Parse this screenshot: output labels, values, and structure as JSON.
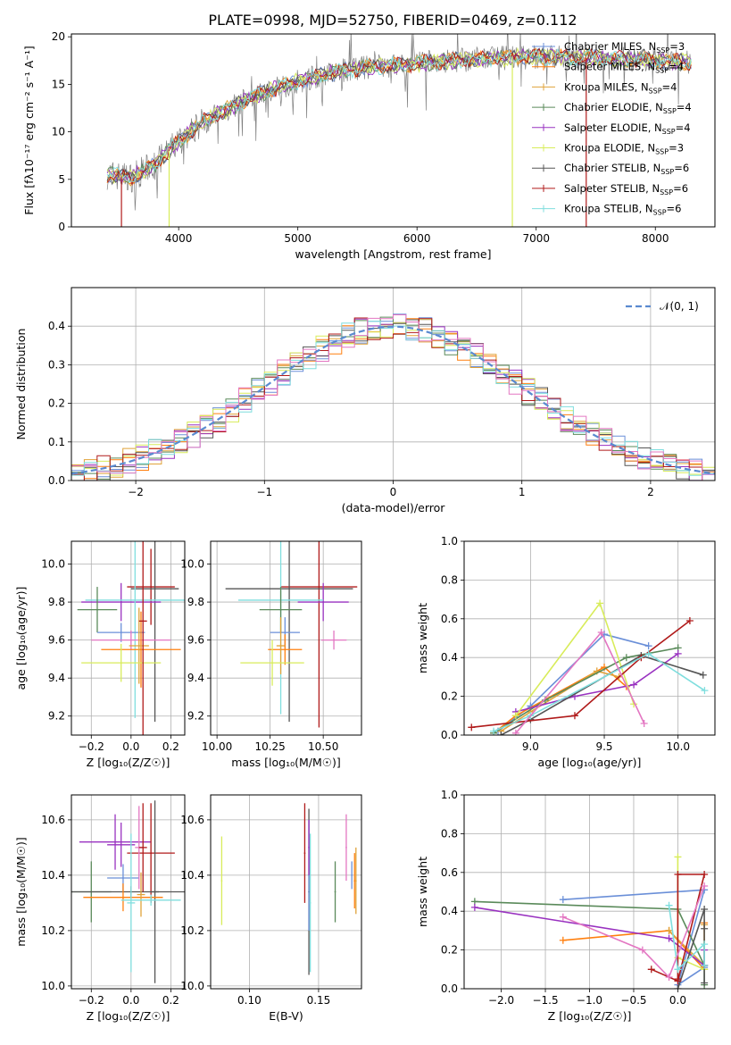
{
  "figure": {
    "title": "PLATE=0998, MJD=52750, FIBERID=0469, z=0.112"
  },
  "colors": {
    "chabrier_miles": "#6a8fd8",
    "salpeter_miles": "#ff7f0e",
    "kroupa_miles": "#e0a33a",
    "chabrier_elodie": "#5a8a5a",
    "salpeter_elodie": "#9932c0",
    "kroupa_elodie": "#d8ec5a",
    "chabrier_stelib": "#555555",
    "salpeter_stelib": "#b01a1a",
    "kroupa_stelib": "#7fdede",
    "orange": "#ff7f0e",
    "pink": "#e377c2",
    "gray_data": "#808080",
    "normal": "#5a8ad0"
  },
  "chart_data": [
    {
      "id": "spectrum",
      "type": "line",
      "title": "PLATE=0998, MJD=52750, FIBERID=0469, z=0.112",
      "xlabel": "wavelength [Angstrom, rest frame]",
      "ylabel": "Flux [fλ10⁻¹⁷ erg cm⁻² s⁻¹ A⁻¹]",
      "xlim": [
        3100,
        8500
      ],
      "ylim": [
        0,
        20.3
      ],
      "xticks": [
        4000,
        5000,
        6000,
        7000,
        8000
      ],
      "yticks": [
        0,
        5,
        10,
        15,
        20
      ],
      "legend_position": "upper-right",
      "legend": [
        {
          "label": "Chabrier MILES, N",
          "sub": "SSP",
          "val": "=3",
          "color_key": "chabrier_miles"
        },
        {
          "label": "Salpeter MILES, N",
          "sub": "SSP",
          "val": "=4",
          "color_key": "salpeter_miles"
        },
        {
          "label": "Kroupa MILES, N",
          "sub": "SSP",
          "val": "=4",
          "color_key": "kroupa_miles"
        },
        {
          "label": "Chabrier ELODIE, N",
          "sub": "SSP",
          "val": "=4",
          "color_key": "chabrier_elodie"
        },
        {
          "label": "Salpeter ELODIE, N",
          "sub": "SSP",
          "val": "=4",
          "color_key": "salpeter_elodie"
        },
        {
          "label": "Kroupa ELODIE, N",
          "sub": "SSP",
          "val": "=3",
          "color_key": "kroupa_elodie"
        },
        {
          "label": "Chabrier STELIB, N",
          "sub": "SSP",
          "val": "=6",
          "color_key": "chabrier_stelib"
        },
        {
          "label": "Salpeter STELIB, N",
          "sub": "SSP",
          "val": "=6",
          "color_key": "salpeter_stelib"
        },
        {
          "label": "Kroupa STELIB, N",
          "sub": "SSP",
          "val": "=6",
          "color_key": "kroupa_stelib"
        }
      ],
      "continuum": {
        "x": [
          3400,
          3600,
          3800,
          4000,
          4200,
          4400,
          4600,
          4800,
          5000,
          5200,
          5400,
          5600,
          5800,
          6000,
          6200,
          6400,
          6600,
          6800,
          7000,
          7200,
          7400,
          7600,
          7800,
          8000,
          8200,
          8300
        ],
        "y": [
          5.5,
          5.2,
          6.5,
          9.0,
          11.0,
          12.3,
          13.6,
          14.5,
          15.3,
          16.0,
          16.5,
          16.8,
          17.0,
          17.2,
          17.4,
          17.6,
          17.7,
          17.8,
          17.9,
          17.9,
          17.8,
          17.7,
          17.6,
          17.5,
          17.4,
          17.3
        ]
      },
      "dips": [
        {
          "color_key": "salpeter_stelib",
          "x": 3520,
          "ymin": 0
        },
        {
          "color_key": "kroupa_elodie",
          "x": 3920,
          "ymin": 0
        },
        {
          "color_key": "kroupa_elodie",
          "x": 6800,
          "ymin": 0
        },
        {
          "color_key": "salpeter_stelib",
          "x": 7420,
          "ymin": 0
        }
      ]
    },
    {
      "id": "residuals",
      "type": "histogram",
      "xlabel": "(data-model)/error",
      "ylabel": "Normed distribution",
      "xlim": [
        -2.5,
        2.5
      ],
      "ylim": [
        0,
        0.5
      ],
      "xticks": [
        -2,
        -1,
        0,
        1,
        2
      ],
      "yticks": [
        0.0,
        0.1,
        0.2,
        0.3,
        0.4
      ],
      "bin_width": 0.1,
      "legend_position": "upper-right",
      "legend": [
        {
          "label": "𝒩(0, 1)",
          "color_key": "normal"
        }
      ],
      "series_color_keys": [
        "chabrier_miles",
        "salpeter_miles",
        "kroupa_miles",
        "chabrier_elodie",
        "salpeter_elodie",
        "kroupa_elodie",
        "chabrier_stelib",
        "salpeter_stelib",
        "kroupa_stelib",
        "pink"
      ],
      "normal_curve": {
        "mean": 0,
        "sigma": 1
      }
    },
    {
      "id": "age_vs_Z",
      "type": "errorbar",
      "xlabel": "Z [log₁₀(Z/Z☉)]",
      "ylabel": "age  [log₁₀(age/yr)]",
      "xlim": [
        -0.3,
        0.27
      ],
      "ylim": [
        9.1,
        10.12
      ],
      "xticks": [
        -0.2,
        0.0,
        0.2
      ],
      "yticks": [
        9.2,
        9.4,
        9.6,
        9.8,
        10.0
      ],
      "points": [
        {
          "color_key": "salpeter_stelib",
          "x": 0.1,
          "y": 9.88,
          "xerr": 0.12,
          "yerr": 0.2
        },
        {
          "color_key": "chabrier_stelib",
          "x": 0.12,
          "y": 9.87,
          "xerr": 0.12,
          "yerr": 0.7
        },
        {
          "color_key": "salpeter_elodie",
          "x": -0.05,
          "y": 9.8,
          "xerr": 0.2,
          "yerr": 0.1
        },
        {
          "color_key": "kroupa_stelib",
          "x": 0.02,
          "y": 9.81,
          "xerr": 0.25,
          "yerr": 0.62
        },
        {
          "color_key": "chabrier_elodie",
          "x": -0.17,
          "y": 9.76,
          "xerr": 0.1,
          "yerr": 0.12
        },
        {
          "color_key": "chabrier_miles",
          "x": -0.05,
          "y": 9.64,
          "xerr": 0.12,
          "yerr": 0.05
        },
        {
          "color_key": "pink",
          "x": 0.0,
          "y": 9.6,
          "xerr": 0.2,
          "yerr": 0.05
        },
        {
          "color_key": "salpeter_miles",
          "x": 0.05,
          "y": 9.55,
          "xerr": 0.2,
          "yerr": 0.2
        },
        {
          "color_key": "kroupa_miles",
          "x": 0.04,
          "y": 9.57,
          "xerr": 0.05,
          "yerr": 0.2
        },
        {
          "color_key": "kroupa_elodie",
          "x": -0.05,
          "y": 9.48,
          "xerr": 0.2,
          "yerr": 0.1
        },
        {
          "color_key": "salpeter_stelib",
          "x": 0.06,
          "y": 9.7,
          "xerr": 0.02,
          "yerr": 0.6
        }
      ]
    },
    {
      "id": "age_vs_mass",
      "type": "errorbar",
      "xlabel": "mass [log₁₀(M/M☉)]",
      "ylabel": "",
      "xlim": [
        9.97,
        10.68
      ],
      "ylim": [
        9.1,
        10.12
      ],
      "xticks": [
        10.0,
        10.25,
        10.5
      ],
      "yticks": [
        9.2,
        9.4,
        9.6,
        9.8,
        10.0
      ],
      "points": [
        {
          "color_key": "salpeter_stelib",
          "x": 10.48,
          "y": 9.88,
          "xerr": 0.18,
          "yerr": 0.74
        },
        {
          "color_key": "chabrier_stelib",
          "x": 10.34,
          "y": 9.87,
          "xerr": 0.3,
          "yerr": 0.7
        },
        {
          "color_key": "salpeter_elodie",
          "x": 10.5,
          "y": 9.8,
          "xerr": 0.12,
          "yerr": 0.1
        },
        {
          "color_key": "kroupa_stelib",
          "x": 10.3,
          "y": 9.81,
          "xerr": 0.2,
          "yerr": 0.6
        },
        {
          "color_key": "chabrier_elodie",
          "x": 10.3,
          "y": 9.76,
          "xerr": 0.1,
          "yerr": 0.12
        },
        {
          "color_key": "chabrier_miles",
          "x": 10.32,
          "y": 9.64,
          "xerr": 0.07,
          "yerr": 0.08
        },
        {
          "color_key": "pink",
          "x": 10.55,
          "y": 9.6,
          "xerr": 0.06,
          "yerr": 0.05
        },
        {
          "color_key": "salpeter_miles",
          "x": 10.32,
          "y": 9.55,
          "xerr": 0.08,
          "yerr": 0.08
        },
        {
          "color_key": "kroupa_miles",
          "x": 10.3,
          "y": 9.57,
          "xerr": 0.02,
          "yerr": 0.15
        },
        {
          "color_key": "kroupa_elodie",
          "x": 10.26,
          "y": 9.48,
          "xerr": 0.15,
          "yerr": 0.12
        }
      ]
    },
    {
      "id": "massweight_vs_age",
      "type": "line",
      "xlabel": "age  [log₁₀(age/yr)]",
      "ylabel": "mass weight",
      "xlim": [
        8.55,
        10.25
      ],
      "ylim": [
        0,
        1.0
      ],
      "xticks": [
        9.0,
        9.5,
        10.0
      ],
      "yticks": [
        0.0,
        0.2,
        0.4,
        0.6,
        0.8,
        1.0
      ],
      "series": [
        {
          "color_key": "chabrier_miles",
          "x": [
            8.78,
            9.0,
            9.5,
            9.8
          ],
          "y": [
            0.02,
            0.15,
            0.52,
            0.46
          ]
        },
        {
          "color_key": "salpeter_miles",
          "x": [
            8.75,
            8.9,
            9.5,
            9.65
          ],
          "y": [
            0.01,
            0.1,
            0.35,
            0.25
          ]
        },
        {
          "color_key": "kroupa_miles",
          "x": [
            8.8,
            9.0,
            9.45,
            9.6
          ],
          "y": [
            0.02,
            0.12,
            0.33,
            0.3
          ]
        },
        {
          "color_key": "chabrier_elodie",
          "x": [
            8.75,
            9.1,
            9.65,
            10.0
          ],
          "y": [
            0.01,
            0.18,
            0.4,
            0.45
          ]
        },
        {
          "color_key": "salpeter_elodie",
          "x": [
            8.9,
            9.3,
            9.7,
            10.0
          ],
          "y": [
            0.12,
            0.2,
            0.26,
            0.42
          ]
        },
        {
          "color_key": "kroupa_elodie",
          "x": [
            8.9,
            9.47,
            9.7
          ],
          "y": [
            0.1,
            0.68,
            0.16
          ]
        },
        {
          "color_key": "chabrier_stelib",
          "x": [
            8.8,
            9.0,
            9.75,
            10.17
          ],
          "y": [
            0.0,
            0.08,
            0.41,
            0.31
          ]
        },
        {
          "color_key": "salpeter_stelib",
          "x": [
            8.6,
            9.3,
            9.75,
            10.08
          ],
          "y": [
            0.04,
            0.1,
            0.4,
            0.59
          ]
        },
        {
          "color_key": "kroupa_stelib",
          "x": [
            8.75,
            9.0,
            9.8,
            10.18
          ],
          "y": [
            0.02,
            0.1,
            0.42,
            0.23
          ]
        },
        {
          "color_key": "pink",
          "x": [
            8.9,
            9.48,
            9.77
          ],
          "y": [
            0.01,
            0.53,
            0.06
          ]
        }
      ]
    },
    {
      "id": "mass_vs_Z",
      "type": "errorbar",
      "xlabel": "Z [log₁₀(Z/Z☉)]",
      "ylabel": "mass [log₁₀(M/M☉)]",
      "xlim": [
        -0.3,
        0.27
      ],
      "ylim": [
        9.99,
        10.69
      ],
      "xticks": [
        -0.2,
        0.0,
        0.2
      ],
      "yticks": [
        10.0,
        10.2,
        10.4,
        10.6
      ],
      "points": [
        {
          "color_key": "chabrier_miles",
          "x": -0.04,
          "y": 10.39,
          "xerr": 0.08,
          "yerr": 0.05
        },
        {
          "color_key": "salpeter_elodie",
          "x": -0.08,
          "y": 10.52,
          "xerr": 0.18,
          "yerr": 0.1
        },
        {
          "color_key": "salpeter_elodie",
          "x": -0.05,
          "y": 10.51,
          "xerr": 0.07,
          "yerr": 0.08
        },
        {
          "color_key": "salpeter_stelib",
          "x": 0.1,
          "y": 10.48,
          "xerr": 0.12,
          "yerr": 0.18
        },
        {
          "color_key": "chabrier_elodie",
          "x": -0.2,
          "y": 10.34,
          "xerr": 0.1,
          "yerr": 0.11
        },
        {
          "color_key": "chabrier_stelib",
          "x": 0.0,
          "y": 10.34,
          "xerr": 0.3,
          "yerr": 0.02
        },
        {
          "color_key": "chabrier_stelib",
          "x": 0.12,
          "y": 10.34,
          "xerr": 0.02,
          "yerr": 0.33
        },
        {
          "color_key": "salpeter_miles",
          "x": -0.04,
          "y": 10.32,
          "xerr": 0.2,
          "yerr": 0.05
        },
        {
          "color_key": "kroupa_miles",
          "x": 0.05,
          "y": 10.33,
          "xerr": 0.02,
          "yerr": 0.08
        },
        {
          "color_key": "kroupa_stelib",
          "x": 0.1,
          "y": 10.31,
          "xerr": 0.15,
          "yerr": 0.02
        },
        {
          "color_key": "kroupa_stelib",
          "x": 0.0,
          "y": 10.3,
          "xerr": 0.02,
          "yerr": 0.25
        },
        {
          "color_key": "pink",
          "x": 0.04,
          "y": 10.5,
          "xerr": 0.02,
          "yerr": 0.15
        },
        {
          "color_key": "salpeter_stelib",
          "x": 0.06,
          "y": 10.5,
          "xerr": 0.02,
          "yerr": 0.16
        }
      ]
    },
    {
      "id": "mass_vs_ebv",
      "type": "errorbar",
      "xlabel": "E(B-V)",
      "ylabel": "",
      "xlim": [
        0.072,
        0.181
      ],
      "ylim": [
        9.99,
        10.69
      ],
      "xticks": [
        0.1,
        0.15
      ],
      "yticks": [
        10.0,
        10.2,
        10.4,
        10.6
      ],
      "points": [
        {
          "color_key": "kroupa_elodie",
          "x": 0.08,
          "y": 10.38,
          "xerr": 0.0,
          "yerr": 0.16
        },
        {
          "color_key": "salpeter_stelib",
          "x": 0.14,
          "y": 10.48,
          "xerr": 0.0,
          "yerr": 0.18
        },
        {
          "color_key": "chabrier_stelib",
          "x": 0.143,
          "y": 10.34,
          "xerr": 0.0,
          "yerr": 0.3
        },
        {
          "color_key": "chabrier_miles",
          "x": 0.143,
          "y": 10.4,
          "xerr": 0.0,
          "yerr": 0.2
        },
        {
          "color_key": "salpeter_elodie",
          "x": 0.143,
          "y": 10.5,
          "xerr": 0.0,
          "yerr": 0.1
        },
        {
          "color_key": "kroupa_stelib",
          "x": 0.144,
          "y": 10.3,
          "xerr": 0.0,
          "yerr": 0.25
        },
        {
          "color_key": "chabrier_elodie",
          "x": 0.162,
          "y": 10.34,
          "xerr": 0.0,
          "yerr": 0.11
        },
        {
          "color_key": "pink",
          "x": 0.17,
          "y": 10.5,
          "xerr": 0.0,
          "yerr": 0.12
        },
        {
          "color_key": "chabrier_miles",
          "x": 0.174,
          "y": 10.4,
          "xerr": 0.0,
          "yerr": 0.05
        },
        {
          "color_key": "salpeter_miles",
          "x": 0.176,
          "y": 10.38,
          "xerr": 0.0,
          "yerr": 0.1
        },
        {
          "color_key": "kroupa_miles",
          "x": 0.177,
          "y": 10.38,
          "xerr": 0.0,
          "yerr": 0.12
        }
      ]
    },
    {
      "id": "massweight_vs_Z",
      "type": "line",
      "xlabel": "Z [log₁₀(Z/Z☉)]",
      "ylabel": "mass weight",
      "xlim": [
        -2.42,
        0.42
      ],
      "ylim": [
        0,
        1.0
      ],
      "xticks": [
        -2.0,
        -1.5,
        -1.0,
        -0.5,
        0.0
      ],
      "yticks": [
        0.0,
        0.2,
        0.4,
        0.6,
        0.8,
        1.0
      ],
      "series": [
        {
          "color_key": "chabrier_miles",
          "x": [
            -1.3,
            0.3,
            0.0,
            0.3
          ],
          "y": [
            0.46,
            0.51,
            0.02,
            0.11
          ]
        },
        {
          "color_key": "salpeter_miles",
          "x": [
            -1.3,
            -0.1,
            0.3,
            0.3
          ],
          "y": [
            0.25,
            0.3,
            0.1,
            0.34
          ]
        },
        {
          "color_key": "kroupa_miles",
          "x": [
            -0.1,
            0.3,
            0.3
          ],
          "y": [
            0.3,
            0.12,
            0.33
          ]
        },
        {
          "color_key": "chabrier_elodie",
          "x": [
            -2.3,
            0.0,
            0.3,
            0.3
          ],
          "y": [
            0.45,
            0.41,
            0.12,
            0.02
          ]
        },
        {
          "color_key": "salpeter_elodie",
          "x": [
            -2.3,
            -0.1,
            0.3,
            0.3
          ],
          "y": [
            0.42,
            0.26,
            0.12,
            0.2
          ]
        },
        {
          "color_key": "kroupa_elodie",
          "x": [
            0.0,
            0.0,
            0.3
          ],
          "y": [
            0.68,
            0.16,
            0.1
          ]
        },
        {
          "color_key": "chabrier_stelib",
          "x": [
            0.0,
            0.3,
            0.3,
            0.3
          ],
          "y": [
            0.0,
            0.41,
            0.31,
            0.03
          ]
        },
        {
          "color_key": "salpeter_stelib",
          "x": [
            -0.3,
            0.0,
            0.3,
            0.0,
            0.0
          ],
          "y": [
            0.1,
            0.04,
            0.59,
            0.59,
            0.05
          ]
        },
        {
          "color_key": "kroupa_stelib",
          "x": [
            -0.1,
            0.0,
            0.3,
            0.3
          ],
          "y": [
            0.43,
            0.1,
            0.23,
            0.12
          ]
        },
        {
          "color_key": "pink",
          "x": [
            -1.3,
            -0.4,
            -0.1,
            0.3
          ],
          "y": [
            0.37,
            0.2,
            0.06,
            0.53
          ]
        }
      ]
    }
  ]
}
